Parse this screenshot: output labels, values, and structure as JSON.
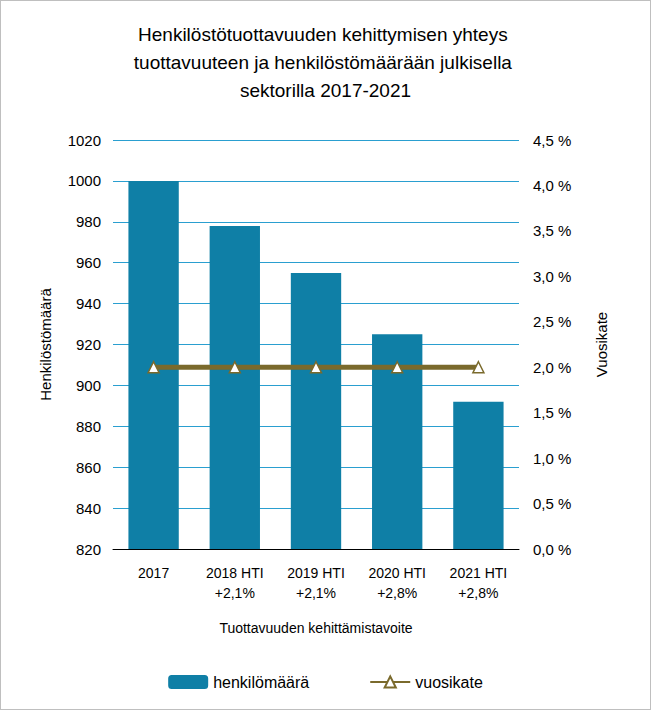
{
  "chart_data": {
    "type": "bar",
    "title": "Henkilöstötuottavuuden kehittymisen yhteys tuottavuuteen ja henkilöstömäärään julkisella sektorilla 2017-2021",
    "xlabel": "Tuottavuuden kehittämistavoite",
    "ylabel": "Henkilöstömäärä",
    "y2label": "Vuosikate",
    "categories": [
      "2017",
      "2018 HTI +2,1%",
      "2019 HTI +2,1%",
      "2020 HTI +2,8%",
      "2021 HTI +2,8%"
    ],
    "series": [
      {
        "name": "henkilömäärä",
        "type": "bar",
        "color": "#0f7fa6",
        "values": [
          1000,
          978,
          955,
          925,
          892
        ]
      },
      {
        "name": "vuosikate",
        "type": "line",
        "axis": "y2",
        "color": "#7a6a2c",
        "marker": "triangle",
        "values": [
          2.0,
          2.0,
          2.0,
          2.0,
          2.0
        ]
      }
    ],
    "ylim": [
      820,
      1020
    ],
    "yticks": [
      820,
      840,
      860,
      880,
      900,
      920,
      940,
      960,
      980,
      1000,
      1020
    ],
    "y2lim": [
      0,
      4.5
    ],
    "y2ticks": [
      {
        "value": 0,
        "label": "0,0 %"
      },
      {
        "value": 0.5,
        "label": "0,5 %"
      },
      {
        "value": 1,
        "label": "1,0 %"
      },
      {
        "value": 1.5,
        "label": "1,5 %"
      },
      {
        "value": 2,
        "label": "2,0 %"
      },
      {
        "value": 2.5,
        "label": "2,5 %"
      },
      {
        "value": 3,
        "label": "3,0 %"
      },
      {
        "value": 3.5,
        "label": "3,5 %"
      },
      {
        "value": 4,
        "label": "4,0 %"
      },
      {
        "value": 4.5,
        "label": "4,5 %"
      }
    ],
    "grid": true,
    "legend": "bottom"
  }
}
